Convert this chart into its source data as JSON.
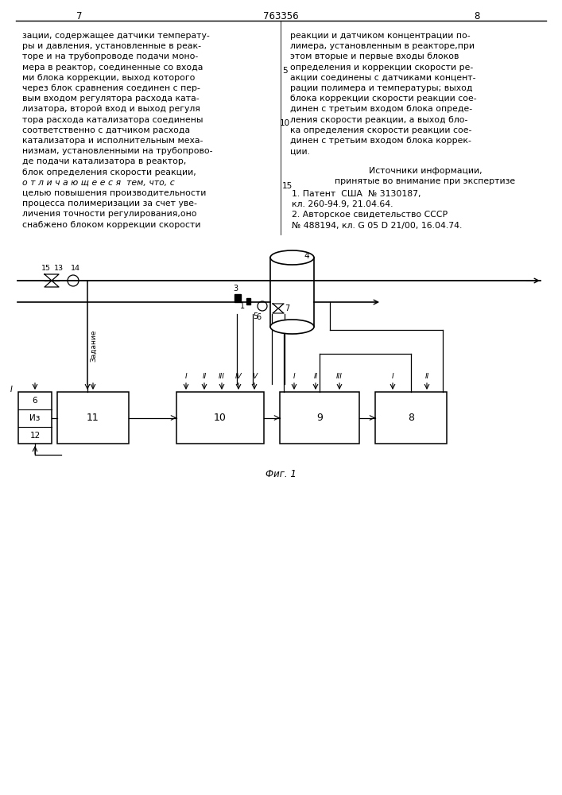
{
  "page_number_left": "7",
  "page_number_center": "763356",
  "page_number_right": "8",
  "col_left_text": [
    "зации, содержащее датчики температу-",
    "ры и давления, установленные в реак-",
    "торе и на трубопроводе подачи моно-",
    "мера в реактор, соединенные со входа",
    "ми блока коррекции, выход которого",
    "через блок сравнения соединен с пер-",
    "вым входом регулятора расхода ката-",
    "лизатора, второй вход и выход регуля",
    "тора расхода катализатора соединены",
    "соответственно с датчиком расхода",
    "катализатора и исполнительным меха-",
    "низмам, установленными на трубопрово-",
    "де подачи катализатора в реактор,",
    "блок определения скорости реакции,",
    "о т л и ч а ю щ е е с я  тем, что, с",
    "целью повышения производительности",
    "процесса полимеризации за счет уве-",
    "личения точности регулирования,оно",
    "снабжено блоком коррекции скорости"
  ],
  "col_right_text": [
    "реакции и датчиком концентрации по-",
    "лимера, установленным в реакторе,при",
    "этом вторые и первые входы блоков",
    "определения и коррекции скорости ре-",
    "акции соединены с датчиками концент-",
    "рации полимера и температуры; выход",
    "блока коррекции скорости реакции сое-",
    "динен с третьим входом блока опреде-",
    "ления скорости реакции, а выход бло-",
    "ка определения скорости реакции сое-",
    "динен с третьим входом блока коррек-",
    "ции."
  ],
  "sources_header": "Источники информации,",
  "sources_subheader": "принятые во внимание при экспертизе",
  "source1": "1. Патент  США  № 3130187,",
  "source1b": "кл. 260-94.9, 21.04.64.",
  "source2": "2. Авторское свидетельство СССР",
  "source2b": "№ 488194, кл. G 05 D 21/00, 16.04.74.",
  "line_number_5": "5",
  "line_number_10": "10",
  "line_number_15": "15",
  "fig_caption": "Фиг. 1",
  "bg_color": "#ffffff"
}
